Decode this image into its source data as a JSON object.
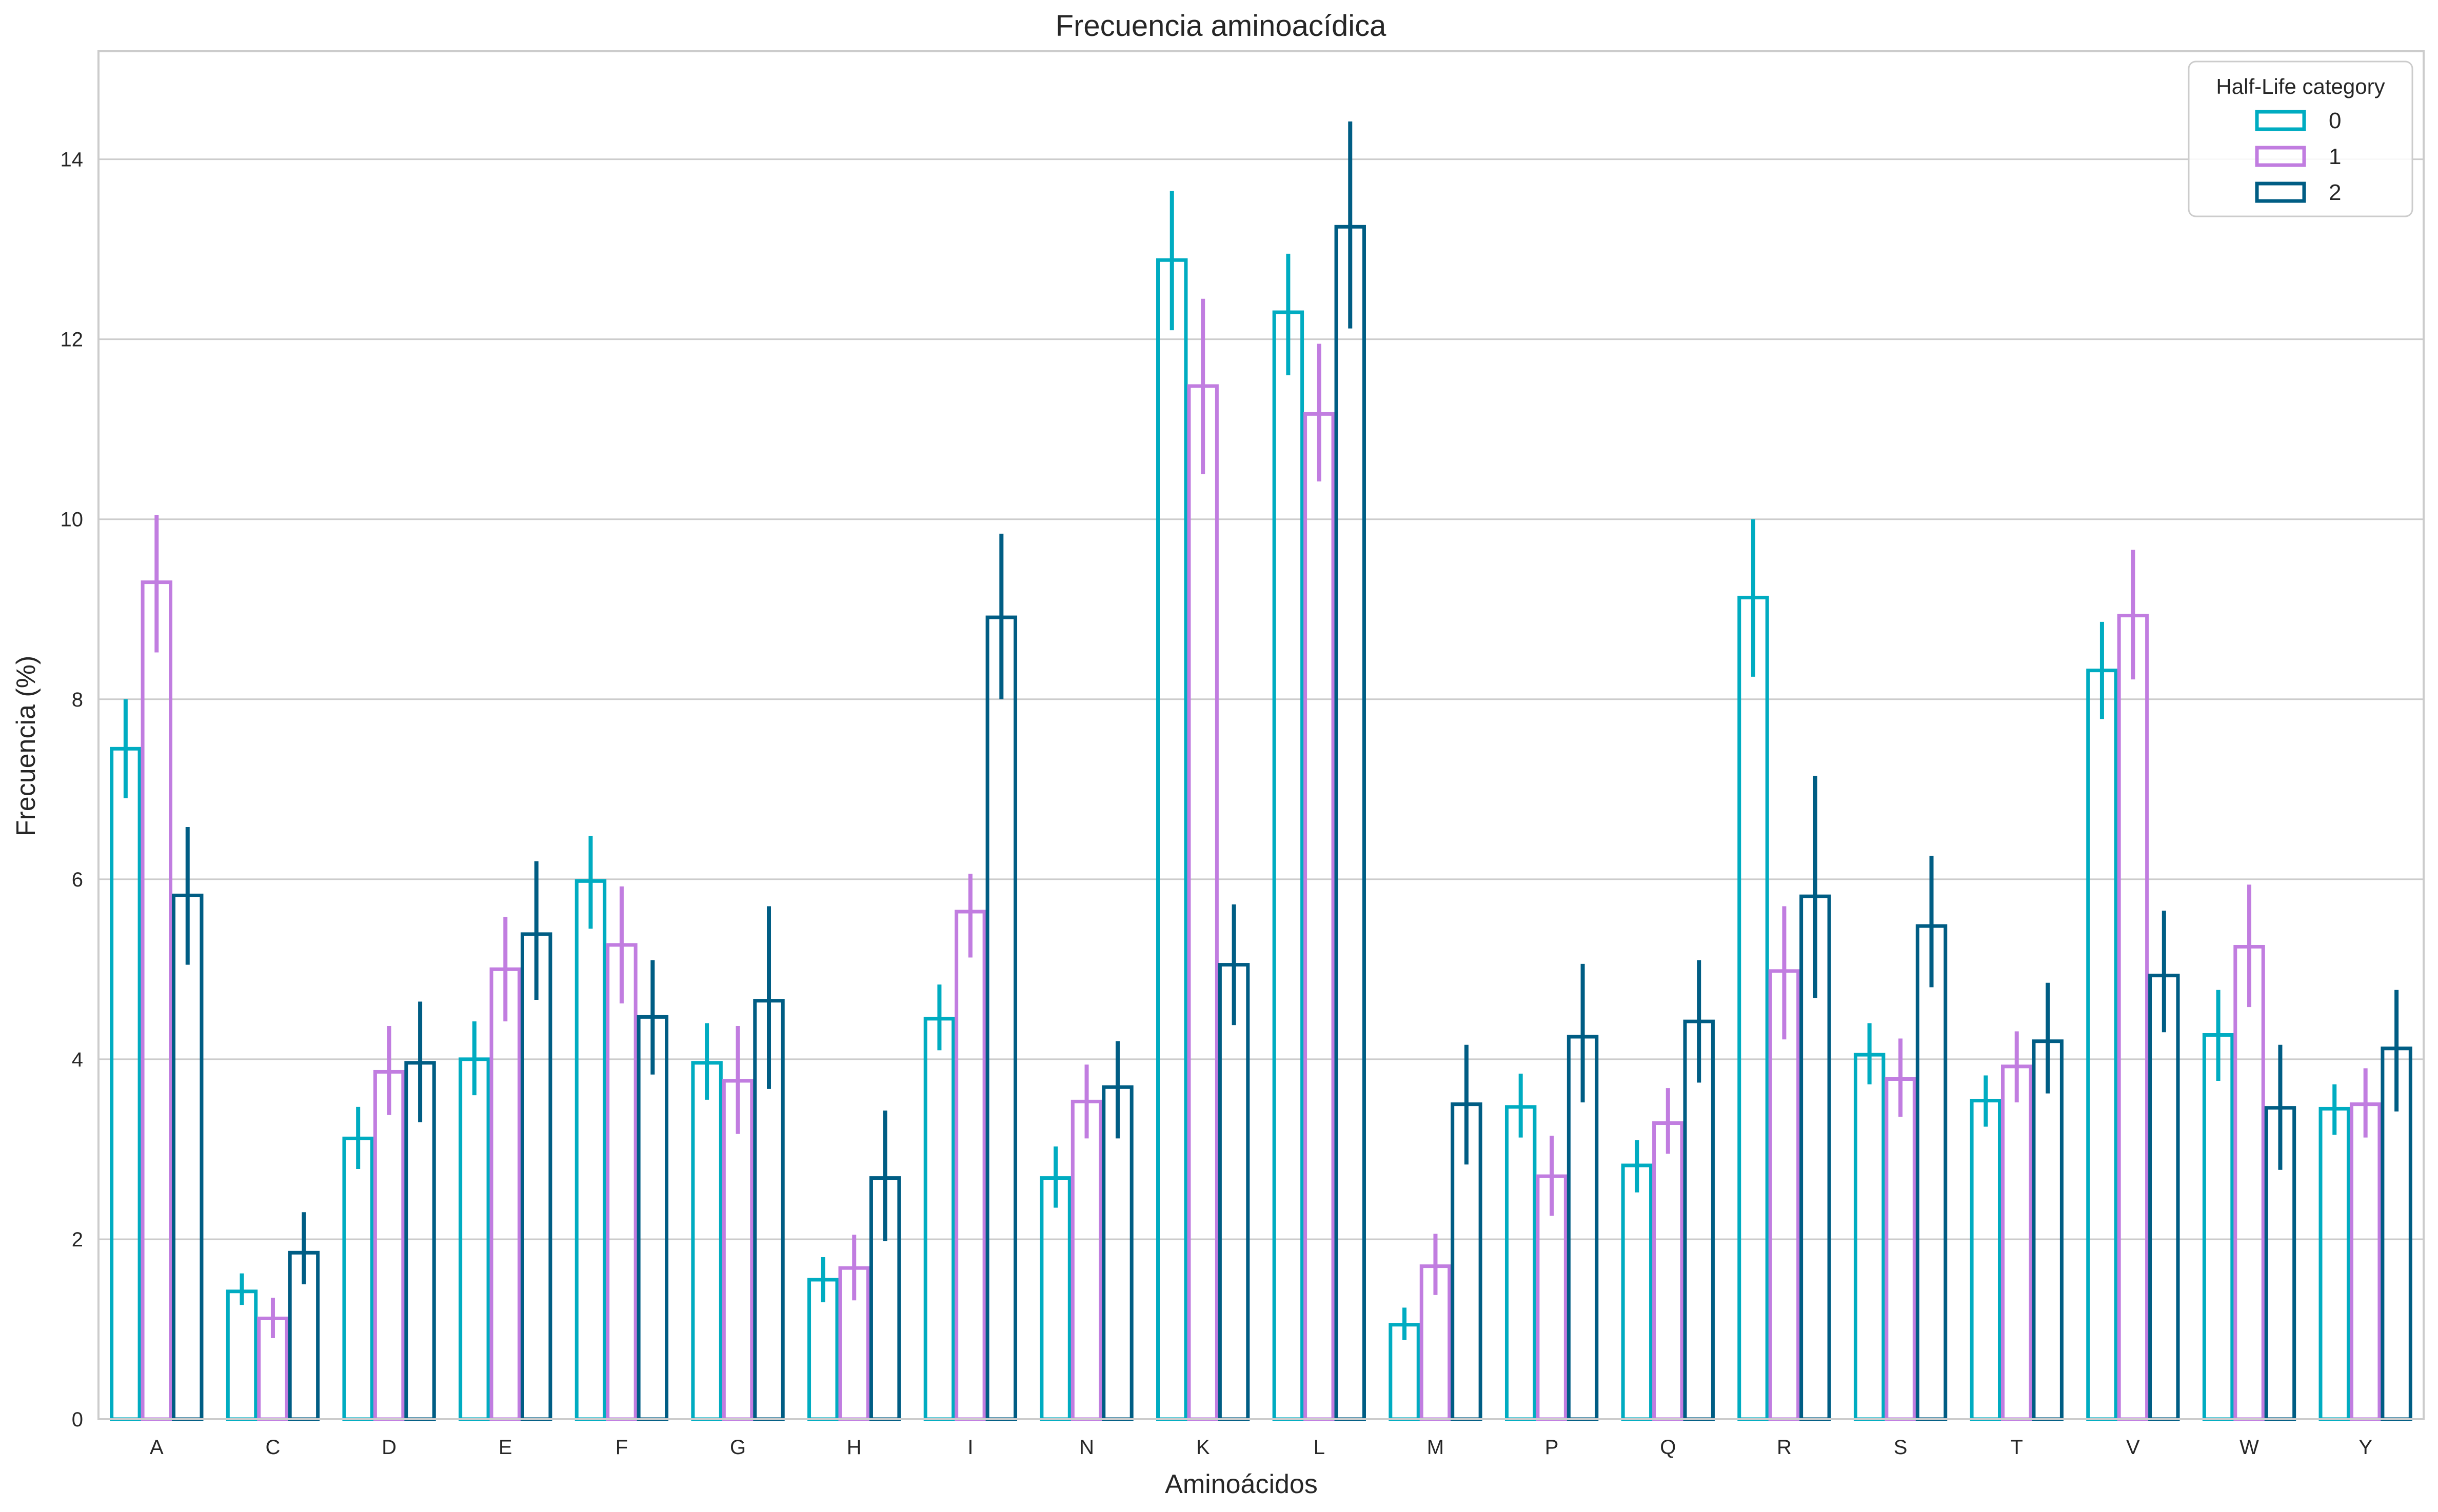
{
  "chart_data": {
    "type": "bar",
    "title": "Frecuencia aminoacídica",
    "xlabel": "Aminoácidos",
    "ylabel": "Frecuencia (%)",
    "ylim": [
      0,
      15.2
    ],
    "yticks": [
      0,
      2,
      4,
      6,
      8,
      10,
      12,
      14
    ],
    "grid": true,
    "legend": {
      "title": "Half-Life category",
      "placement": "top-right"
    },
    "categories": [
      "A",
      "C",
      "D",
      "E",
      "F",
      "G",
      "H",
      "I",
      "N",
      "K",
      "L",
      "M",
      "P",
      "Q",
      "R",
      "S",
      "T",
      "V",
      "W",
      "Y"
    ],
    "series": [
      {
        "name": "0",
        "color": "#00acc1",
        "values": [
          7.45,
          1.42,
          3.12,
          4.0,
          5.98,
          3.96,
          1.55,
          4.45,
          2.68,
          12.88,
          12.3,
          1.05,
          3.47,
          2.82,
          9.13,
          4.05,
          3.54,
          8.32,
          4.27,
          3.45
        ],
        "errors": [
          [
            6.9,
            8.0
          ],
          [
            1.27,
            1.62
          ],
          [
            2.78,
            3.47
          ],
          [
            3.6,
            4.42
          ],
          [
            5.45,
            6.48
          ],
          [
            3.55,
            4.4
          ],
          [
            1.3,
            1.8
          ],
          [
            4.1,
            4.83
          ],
          [
            2.35,
            3.03
          ],
          [
            12.1,
            13.65
          ],
          [
            11.6,
            12.95
          ],
          [
            0.88,
            1.24
          ],
          [
            3.13,
            3.84
          ],
          [
            2.52,
            3.1
          ],
          [
            8.25,
            10.0
          ],
          [
            3.72,
            4.4
          ],
          [
            3.25,
            3.82
          ],
          [
            7.78,
            8.86
          ],
          [
            3.76,
            4.77
          ],
          [
            3.16,
            3.72
          ]
        ]
      },
      {
        "name": "1",
        "color": "#c17de0",
        "values": [
          9.3,
          1.12,
          3.86,
          5.0,
          5.27,
          3.76,
          1.68,
          5.64,
          3.53,
          11.48,
          11.17,
          1.7,
          2.7,
          3.29,
          4.98,
          3.78,
          3.92,
          8.93,
          5.25,
          3.5
        ],
        "errors": [
          [
            8.52,
            10.05
          ],
          [
            0.9,
            1.35
          ],
          [
            3.38,
            4.37
          ],
          [
            4.42,
            5.58
          ],
          [
            4.62,
            5.92
          ],
          [
            3.17,
            4.37
          ],
          [
            1.32,
            2.05
          ],
          [
            5.13,
            6.06
          ],
          [
            3.12,
            3.94
          ],
          [
            10.5,
            12.45
          ],
          [
            10.42,
            11.95
          ],
          [
            1.38,
            2.06
          ],
          [
            2.26,
            3.15
          ],
          [
            2.95,
            3.68
          ],
          [
            4.22,
            5.7
          ],
          [
            3.36,
            4.23
          ],
          [
            3.52,
            4.31
          ],
          [
            8.22,
            9.66
          ],
          [
            4.58,
            5.94
          ],
          [
            3.13,
            3.9
          ]
        ]
      },
      {
        "name": "2",
        "color": "#005d84",
        "values": [
          5.82,
          1.85,
          3.96,
          5.39,
          4.47,
          4.65,
          2.68,
          8.91,
          3.69,
          5.05,
          13.25,
          3.5,
          4.25,
          4.42,
          5.81,
          5.48,
          4.2,
          4.93,
          3.46,
          4.12
        ],
        "errors": [
          [
            5.05,
            6.58
          ],
          [
            1.5,
            2.3
          ],
          [
            3.3,
            4.64
          ],
          [
            4.66,
            6.2
          ],
          [
            3.83,
            5.1
          ],
          [
            3.67,
            5.7
          ],
          [
            1.98,
            3.43
          ],
          [
            8.0,
            9.84
          ],
          [
            3.12,
            4.2
          ],
          [
            4.38,
            5.72
          ],
          [
            12.12,
            14.42
          ],
          [
            2.83,
            4.16
          ],
          [
            3.52,
            5.06
          ],
          [
            3.74,
            5.1
          ],
          [
            4.68,
            7.15
          ],
          [
            4.8,
            6.26
          ],
          [
            3.62,
            4.85
          ],
          [
            4.3,
            5.65
          ],
          [
            2.77,
            4.16
          ],
          [
            3.42,
            4.77
          ]
        ]
      }
    ]
  }
}
